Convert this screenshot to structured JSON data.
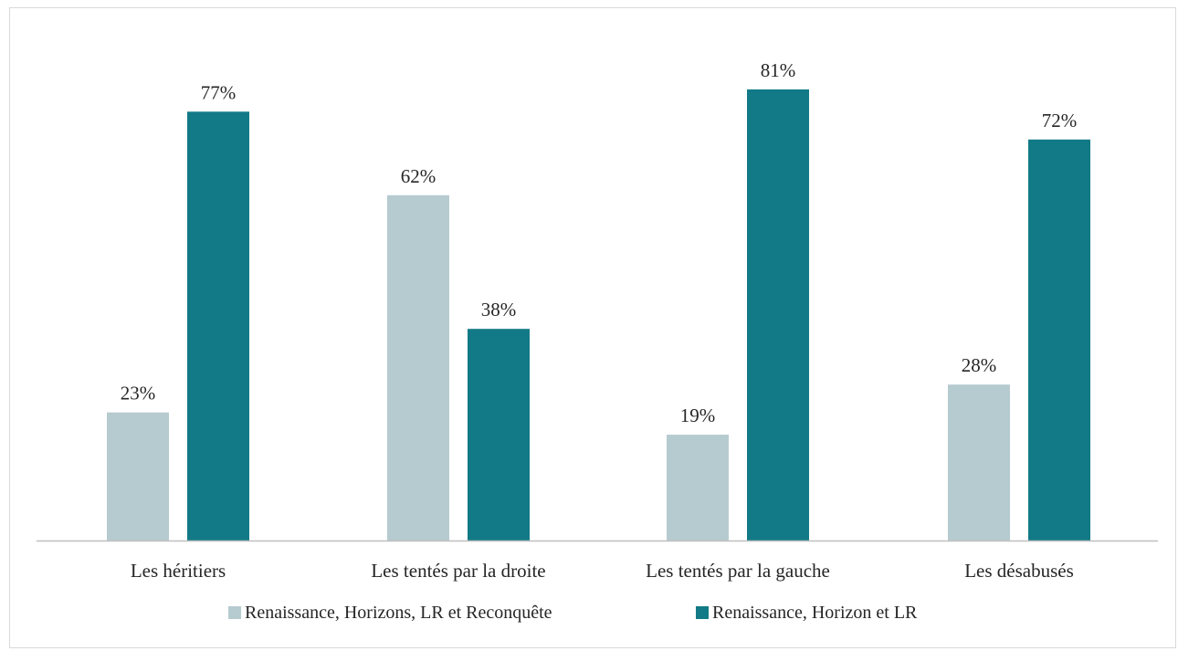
{
  "chart_data": {
    "type": "bar",
    "categories": [
      "Les héritiers",
      "Les tentés par la droite",
      "Les tentés par la gauche",
      "Les désabusés"
    ],
    "series": [
      {
        "name": "Renaissance, Horizons, LR et Reconquête",
        "values": [
          23,
          62,
          19,
          28
        ],
        "labels": [
          "23%",
          "62%",
          "19%",
          "28%"
        ],
        "color": "#b6cbd0"
      },
      {
        "name": "Renaissance, Horizon et LR",
        "values": [
          77,
          38,
          81,
          72
        ],
        "labels": [
          "77%",
          "38%",
          "81%",
          "72%"
        ],
        "color": "#127a86"
      }
    ],
    "ylim": [
      0,
      100
    ],
    "unit": "%",
    "grid": false,
    "legend_position": "bottom",
    "axis_color": "#bfbfbf",
    "text_color": "#262626"
  }
}
